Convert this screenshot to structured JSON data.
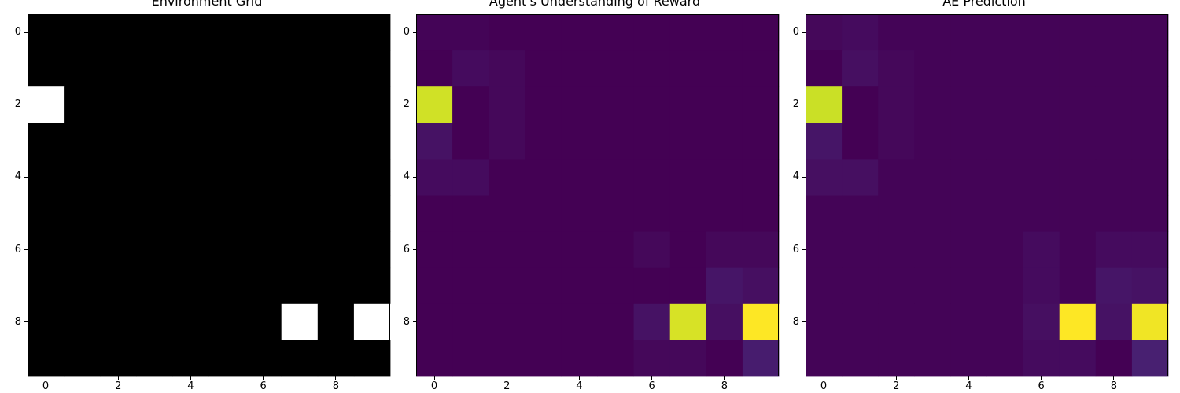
{
  "chart_data": [
    {
      "type": "heatmap",
      "title": "Environment Grid",
      "colormap": "gray",
      "vmin": 0,
      "vmax": 1,
      "xticks": [
        0,
        2,
        4,
        6,
        8
      ],
      "yticks": [
        0,
        2,
        4,
        6,
        8
      ],
      "values": [
        [
          0,
          0,
          0,
          0,
          0,
          0,
          0,
          0,
          0,
          0
        ],
        [
          0,
          0,
          0,
          0,
          0,
          0,
          0,
          0,
          0,
          0
        ],
        [
          1,
          0,
          0,
          0,
          0,
          0,
          0,
          0,
          0,
          0
        ],
        [
          0,
          0,
          0,
          0,
          0,
          0,
          0,
          0,
          0,
          0
        ],
        [
          0,
          0,
          0,
          0,
          0,
          0,
          0,
          0,
          0,
          0
        ],
        [
          0,
          0,
          0,
          0,
          0,
          0,
          0,
          0,
          0,
          0
        ],
        [
          0,
          0,
          0,
          0,
          0,
          0,
          0,
          0,
          0,
          0
        ],
        [
          0,
          0,
          0,
          0,
          0,
          0,
          0,
          0,
          0,
          0
        ],
        [
          0,
          0,
          0,
          0,
          0,
          0,
          0,
          1,
          0,
          1
        ],
        [
          0,
          0,
          0,
          0,
          0,
          0,
          0,
          0,
          0,
          0
        ]
      ]
    },
    {
      "type": "heatmap",
      "title": "Agent's Understanding of Reward",
      "colormap": "viridis",
      "vmin": 0,
      "vmax": 1,
      "xticks": [
        0,
        2,
        4,
        6,
        8
      ],
      "yticks": [
        0,
        2,
        4,
        6,
        8
      ],
      "values": [
        [
          0.01,
          0.01,
          0.0,
          0.0,
          0.0,
          0.0,
          0.0,
          0.0,
          0.0,
          0.0
        ],
        [
          0.0,
          0.03,
          0.02,
          0.0,
          0.0,
          0.0,
          0.0,
          0.0,
          0.0,
          0.0
        ],
        [
          0.93,
          0.0,
          0.02,
          0.0,
          0.0,
          0.0,
          0.0,
          0.0,
          0.0,
          0.0
        ],
        [
          0.05,
          0.0,
          0.02,
          0.0,
          0.0,
          0.0,
          0.0,
          0.0,
          0.0,
          0.0
        ],
        [
          0.03,
          0.03,
          0.0,
          0.0,
          0.0,
          0.0,
          0.0,
          0.0,
          0.0,
          0.0
        ],
        [
          0.0,
          0.0,
          0.0,
          0.0,
          0.0,
          0.0,
          0.0,
          0.0,
          0.0,
          0.0
        ],
        [
          0.0,
          0.0,
          0.0,
          0.0,
          0.0,
          0.0,
          0.02,
          0.0,
          0.02,
          0.02
        ],
        [
          0.0,
          0.0,
          0.0,
          0.0,
          0.0,
          0.0,
          0.0,
          0.0,
          0.06,
          0.04
        ],
        [
          0.0,
          0.0,
          0.0,
          0.0,
          0.0,
          0.0,
          0.05,
          0.94,
          0.04,
          1.0
        ],
        [
          0.0,
          0.0,
          0.0,
          0.0,
          0.0,
          0.0,
          0.02,
          0.02,
          0.0,
          0.08
        ]
      ]
    },
    {
      "type": "heatmap",
      "title": "AE Prediction",
      "colormap": "viridis",
      "vmin": 0,
      "vmax": 1,
      "xticks": [
        0,
        2,
        4,
        6,
        8
      ],
      "yticks": [
        0,
        2,
        4,
        6,
        8
      ],
      "values": [
        [
          0.02,
          0.03,
          0.01,
          0.01,
          0.01,
          0.01,
          0.01,
          0.01,
          0.01,
          0.01
        ],
        [
          0.0,
          0.04,
          0.02,
          0.01,
          0.01,
          0.01,
          0.01,
          0.01,
          0.01,
          0.01
        ],
        [
          0.92,
          -0.02,
          0.02,
          0.01,
          0.01,
          0.01,
          0.01,
          0.01,
          0.01,
          0.01
        ],
        [
          0.06,
          0.0,
          0.02,
          0.01,
          0.01,
          0.01,
          0.01,
          0.01,
          0.01,
          0.01
        ],
        [
          0.04,
          0.04,
          0.01,
          0.01,
          0.01,
          0.01,
          0.01,
          0.01,
          0.01,
          0.01
        ],
        [
          0.01,
          0.01,
          0.01,
          0.01,
          0.01,
          0.01,
          0.01,
          0.01,
          0.01,
          0.01
        ],
        [
          0.01,
          0.01,
          0.01,
          0.01,
          0.01,
          0.01,
          0.03,
          0.01,
          0.03,
          0.03
        ],
        [
          0.01,
          0.01,
          0.01,
          0.01,
          0.01,
          0.01,
          0.03,
          0.01,
          0.06,
          0.05
        ],
        [
          0.01,
          0.01,
          0.01,
          0.01,
          0.01,
          0.01,
          0.04,
          1.0,
          0.05,
          0.98
        ],
        [
          0.01,
          0.01,
          0.01,
          0.01,
          0.01,
          0.01,
          0.03,
          0.03,
          0.0,
          0.09
        ]
      ]
    }
  ]
}
